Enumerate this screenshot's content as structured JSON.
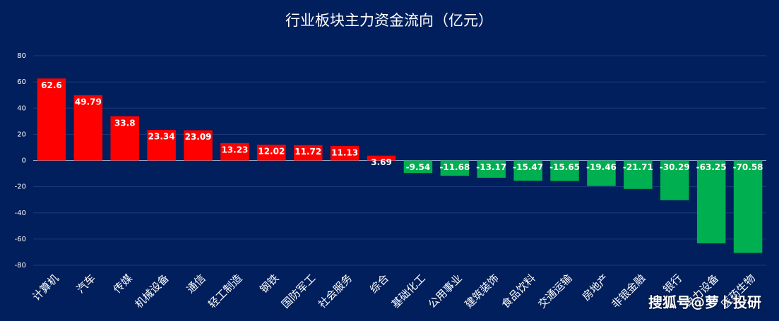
{
  "chart_data": {
    "type": "bar",
    "title": "行业板块主力资金流向（亿元）",
    "categories": [
      "计算机",
      "汽车",
      "传媒",
      "机械设备",
      "通信",
      "轻工制造",
      "钢铁",
      "国防军工",
      "社会服务",
      "综合",
      "基础化工",
      "公用事业",
      "建筑装饰",
      "食品饮料",
      "交通运输",
      "房地产",
      "非银金融",
      "银行",
      "电力设备",
      "医药生物"
    ],
    "values": [
      62.6,
      49.79,
      33.8,
      23.34,
      23.09,
      13.23,
      12.02,
      11.72,
      11.13,
      3.69,
      -9.54,
      -11.68,
      -13.17,
      -15.47,
      -15.65,
      -19.46,
      -21.71,
      -30.29,
      -63.25,
      -70.58
    ],
    "positive_color": "#ff0000",
    "negative_color": "#00b050",
    "ylim": [
      -80,
      80
    ],
    "yticks": [
      -80,
      -60,
      -40,
      -20,
      0,
      20,
      40,
      60,
      80
    ],
    "grid": true,
    "watermark": "搜狐号@萝卜投研"
  }
}
